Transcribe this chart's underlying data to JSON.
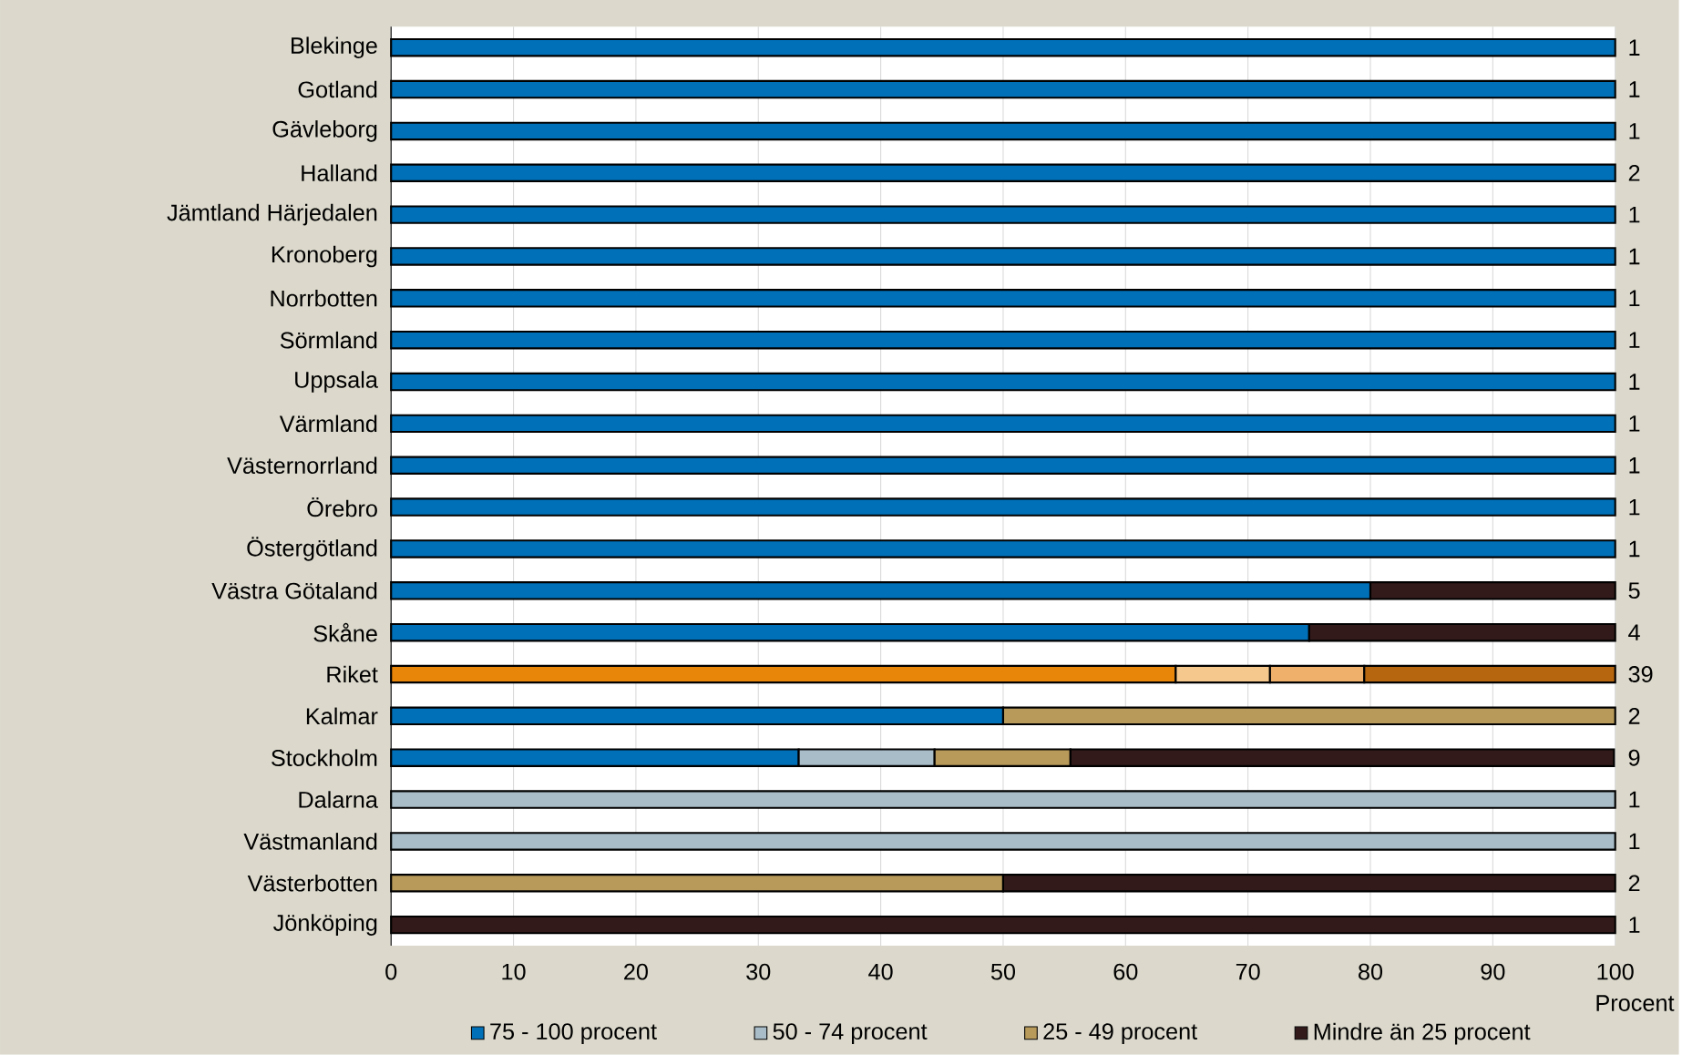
{
  "chart_data": {
    "type": "bar",
    "orientation": "horizontal",
    "stacked": true,
    "xlabel": "Procent",
    "categories": [
      "Blekinge",
      "Gotland",
      "Gävleborg",
      "Halland",
      "Jämtland Härjedalen",
      "Kronoberg",
      "Norrbotten",
      "Sörmland",
      "Uppsala",
      "Värmland",
      "Västernorrland",
      "Örebro",
      "Östergötland",
      "Västra Götaland",
      "Skåne",
      "Riket",
      "Kalmar",
      "Stockholm",
      "Dalarna",
      "Västmanland",
      "Västerbotten",
      "Jönköping"
    ],
    "series": [
      {
        "name": "75 - 100 procent",
        "color": "#0070b8",
        "values": [
          100,
          100,
          100,
          100,
          100,
          100,
          100,
          100,
          100,
          100,
          100,
          100,
          100,
          80,
          75,
          64.1,
          50,
          33.3,
          null,
          null,
          null,
          null
        ],
        "colors": [
          "#0070b8",
          "#0070b8",
          "#0070b8",
          "#0070b8",
          "#0070b8",
          "#0070b8",
          "#0070b8",
          "#0070b8",
          "#0070b8",
          "#0070b8",
          "#0070b8",
          "#0070b8",
          "#0070b8",
          "#0070b8",
          "#0070b8",
          "#e8860a",
          "#0070b8",
          "#0070b8",
          "#0070b8",
          "#0070b8",
          "#0070b8",
          "#0070b8"
        ]
      },
      {
        "name": "50 - 74 procent",
        "color": "#a9bdc8",
        "values": [
          null,
          null,
          null,
          null,
          null,
          null,
          null,
          null,
          null,
          null,
          null,
          null,
          null,
          null,
          null,
          7.7,
          null,
          11.1,
          100,
          100,
          null,
          null
        ],
        "colors": [
          "#a9bdc8",
          "#a9bdc8",
          "#a9bdc8",
          "#a9bdc8",
          "#a9bdc8",
          "#a9bdc8",
          "#a9bdc8",
          "#a9bdc8",
          "#a9bdc8",
          "#a9bdc8",
          "#a9bdc8",
          "#a9bdc8",
          "#a9bdc8",
          "#a9bdc8",
          "#a9bdc8",
          "#f5c98e",
          "#a9bdc8",
          "#a9bdc8",
          "#a9bdc8",
          "#a9bdc8",
          "#a9bdc8",
          "#a9bdc8"
        ]
      },
      {
        "name": "25 - 49 procent",
        "color": "#b89a5a",
        "values": [
          null,
          null,
          null,
          null,
          null,
          null,
          null,
          null,
          null,
          null,
          null,
          null,
          null,
          null,
          null,
          7.7,
          50,
          11.1,
          null,
          null,
          50,
          null
        ],
        "colors": [
          "#b89a5a",
          "#b89a5a",
          "#b89a5a",
          "#b89a5a",
          "#b89a5a",
          "#b89a5a",
          "#b89a5a",
          "#b89a5a",
          "#b89a5a",
          "#b89a5a",
          "#b89a5a",
          "#b89a5a",
          "#b89a5a",
          "#b89a5a",
          "#b89a5a",
          "#eeb06a",
          "#b89a5a",
          "#b89a5a",
          "#b89a5a",
          "#b89a5a",
          "#b89a5a",
          "#b89a5a"
        ]
      },
      {
        "name": "Mindre än 25 procent",
        "color": "#331a1a",
        "values": [
          null,
          null,
          null,
          null,
          null,
          null,
          null,
          null,
          null,
          null,
          null,
          null,
          null,
          20,
          25,
          20.5,
          null,
          44.4,
          null,
          null,
          50,
          100
        ],
        "colors": [
          "#331a1a",
          "#331a1a",
          "#331a1a",
          "#331a1a",
          "#331a1a",
          "#331a1a",
          "#331a1a",
          "#331a1a",
          "#331a1a",
          "#331a1a",
          "#331a1a",
          "#331a1a",
          "#331a1a",
          "#331a1a",
          "#331a1a",
          "#b5660e",
          "#331a1a",
          "#331a1a",
          "#331a1a",
          "#331a1a",
          "#331a1a",
          "#331a1a"
        ]
      }
    ],
    "annotations": [
      "1",
      "1",
      "1",
      "2",
      "1",
      "1",
      "1",
      "1",
      "1",
      "1",
      "1",
      "1",
      "1",
      "5",
      "4",
      "39",
      "2",
      "9",
      "1",
      "1",
      "2",
      "1"
    ],
    "xlim": [
      0,
      100
    ],
    "xticks": [
      0,
      10,
      20,
      30,
      40,
      50,
      60,
      70,
      80,
      90,
      100
    ],
    "grid": "x",
    "legend": "bottom"
  }
}
